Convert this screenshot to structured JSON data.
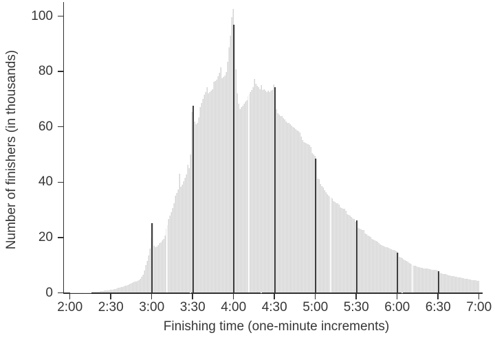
{
  "chart_data": {
    "type": "bar",
    "title": "",
    "xlabel": "Finishing time (one-minute increments)",
    "ylabel": "Number of finishers (in thousands)",
    "x_tick_labels": [
      "2:00",
      "2:30",
      "3:00",
      "3:30",
      "4:00",
      "4:30",
      "5:00",
      "5:30",
      "6:00",
      "6:30",
      "7:00"
    ],
    "y_tick_values": [
      0,
      20,
      40,
      60,
      80,
      100
    ],
    "ylim": [
      0,
      104
    ],
    "grid": "off",
    "legend": "none",
    "x_start": "2:00",
    "x_end": "7:00",
    "bin_width_minutes": 1,
    "values_unit": "thousands of finishers per one-minute bin, offsets in minutes after 2:00",
    "values": [
      0.05,
      0.06,
      0.07,
      0.08,
      0.09,
      0.1,
      0.1,
      0.11,
      0.12,
      0.13,
      0.14,
      0.15,
      0.17,
      0.19,
      0.21,
      0.24,
      0.27,
      0.3,
      0.34,
      0.38,
      0.43,
      0.48,
      0.54,
      0.6,
      0.67,
      0.75,
      0.82,
      0.88,
      0.94,
      1.0,
      1.1,
      1.2,
      1.3,
      1.45,
      1.6,
      1.75,
      1.9,
      2.0,
      2.15,
      2.3,
      2.5,
      2.7,
      2.9,
      3.1,
      3.3,
      3.5,
      3.8,
      4.0,
      4.2,
      4.4,
      4.6,
      5.2,
      5.8,
      6.6,
      8.0,
      10.0,
      11.5,
      13.5,
      16.0,
      20.0,
      25.3,
      17.0,
      16.5,
      16.8,
      17.2,
      17.9,
      18.3,
      18.9,
      19.6,
      20.8,
      23.2,
      24.4,
      26.6,
      27.8,
      29.2,
      30.7,
      32.4,
      35.2,
      36.2,
      37.3,
      43.1,
      38.3,
      39.0,
      40.2,
      41.5,
      42.7,
      46.4,
      45.0,
      50.0,
      65.5,
      67.5,
      62.0,
      61.0,
      61.5,
      63.5,
      67.0,
      68.5,
      70.0,
      71.7,
      72.5,
      74.2,
      72.0,
      72.5,
      73.0,
      73.5,
      76.2,
      76.5,
      77.0,
      78.2,
      79.5,
      81.6,
      77.5,
      78.0,
      78.6,
      79.9,
      83.6,
      88.6,
      93.0,
      99.7,
      102.7,
      96.8,
      80.7,
      72.0,
      68.3,
      66.5,
      67.0,
      67.5,
      68.3,
      69.0,
      69.7,
      71.2,
      71.8,
      72.6,
      73.3,
      74.2,
      77.4,
      75.5,
      74.8,
      74.2,
      73.6,
      75.0,
      73.3,
      73.6,
      73.0,
      72.6,
      73.2,
      72.6,
      73.0,
      73.3,
      75.2,
      74.3,
      66.3,
      65.0,
      64.4,
      64.0,
      63.8,
      63.2,
      62.6,
      62.0,
      61.5,
      61.3,
      60.8,
      60.4,
      60.0,
      59.6,
      59.2,
      58.8,
      58.4,
      58.0,
      56.5,
      55.1,
      54.5,
      54.2,
      53.9,
      53.6,
      53.4,
      52.8,
      50.5,
      49.9,
      49.4,
      48.5,
      41.4,
      41.0,
      39.4,
      38.6,
      38.0,
      37.2,
      36.4,
      35.7,
      35.1,
      34.7,
      34.5,
      34.0,
      33.2,
      32.8,
      32.5,
      32.3,
      31.8,
      31.0,
      30.7,
      30.5,
      30.3,
      29.6,
      28.5,
      28.2,
      27.8,
      27.4,
      27.0,
      26.6,
      25.8,
      26.3,
      23.4,
      23.2,
      23.0,
      22.8,
      22.6,
      21.4,
      21.1,
      20.7,
      20.4,
      20.3,
      19.5,
      19.2,
      18.9,
      18.7,
      18.4,
      17.9,
      17.6,
      17.3,
      17.0,
      16.8,
      16.6,
      16.4,
      16.2,
      16.0,
      15.8,
      15.6,
      15.4,
      15.2,
      15.0,
      14.6,
      13.0,
      12.7,
      12.5,
      12.1,
      11.8,
      11.6,
      11.2,
      10.9,
      10.6,
      10.3,
      10.0,
      9.8,
      9.7,
      9.5,
      9.4,
      9.2,
      9.1,
      9.0,
      8.9,
      8.8,
      8.8,
      8.7,
      8.6,
      8.5,
      8.4,
      8.4,
      8.3,
      8.2,
      8.1,
      7.8,
      7.1,
      7.0,
      6.9,
      6.8,
      6.7,
      6.5,
      6.4,
      6.3,
      6.2,
      6.1,
      6.0,
      5.9,
      5.8,
      5.7,
      5.6,
      5.5,
      5.4,
      5.3,
      5.2,
      5.1,
      5.0,
      4.9,
      4.8,
      4.7,
      4.6,
      4.6,
      4.5,
      4.4,
      4.4
    ],
    "round_time_spikes": [
      {
        "label": "3:00",
        "minute_offset": 60,
        "value": 25.3
      },
      {
        "label": "3:30",
        "minute_offset": 90,
        "value": 67.5
      },
      {
        "label": "4:00",
        "minute_offset": 120,
        "value": 96.8
      },
      {
        "label": "4:30",
        "minute_offset": 150,
        "value": 74.3
      },
      {
        "label": "5:00",
        "minute_offset": 180,
        "value": 48.5
      },
      {
        "label": "5:30",
        "minute_offset": 210,
        "value": 26.3
      },
      {
        "label": "6:00",
        "minute_offset": 240,
        "value": 14.6
      },
      {
        "label": "6:30",
        "minute_offset": 270,
        "value": 7.8
      }
    ],
    "peak": {
      "at": "3:59",
      "value": 102.7
    }
  },
  "colors": {
    "background": "#ffffff",
    "bar_fill": "#d3d3d3",
    "bar_edge": "#ececec",
    "spike_line": "#3d3d3d",
    "axis_line": "#2f2f2f",
    "text": "#363636"
  }
}
